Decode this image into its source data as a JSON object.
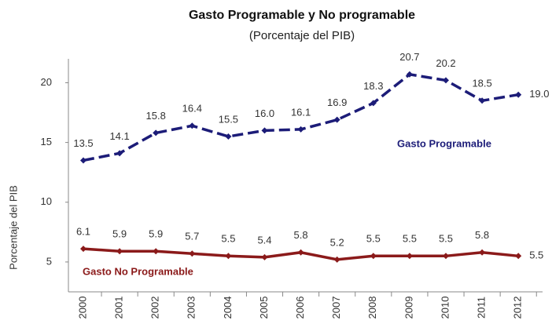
{
  "chart_data": {
    "type": "line",
    "title": "Gasto Programable y No programable",
    "subtitle": "(Porcentaje del PIB)",
    "y_label": "Porcentaje del PIB",
    "categories": [
      "2000",
      "2001",
      "2002",
      "2003",
      "2004",
      "2005",
      "2006",
      "2007",
      "2008",
      "2009",
      "2010",
      "2011",
      "2012"
    ],
    "series": [
      {
        "name": "Gasto Programable",
        "color": "#1c1c78",
        "dashed": true,
        "values": [
          13.5,
          14.1,
          15.8,
          16.4,
          15.5,
          16.0,
          16.1,
          16.9,
          18.3,
          20.7,
          20.2,
          18.5,
          19.0
        ],
        "value_labels": [
          "13.5",
          "14.1",
          "15.8",
          "16.4",
          "15.5",
          "16.0",
          "16.1",
          "16.9",
          "18.3",
          "20.7",
          "20.2",
          "18.5",
          "19.0"
        ]
      },
      {
        "name": "Gasto No Programable",
        "color": "#8b1a1a",
        "dashed": false,
        "values": [
          6.1,
          5.9,
          5.9,
          5.7,
          5.5,
          5.4,
          5.8,
          5.2,
          5.5,
          5.5,
          5.5,
          5.8,
          5.5
        ],
        "value_labels": [
          "6.1",
          "5.9",
          "5.9",
          "5.7",
          "5.5",
          "5.4",
          "5.8",
          "5.2",
          "5.5",
          "5.5",
          "5.5",
          "5.8",
          "5.5"
        ]
      }
    ],
    "ylim": [
      2.5,
      22
    ],
    "yticks": [
      5,
      10,
      15,
      20
    ],
    "grid": false
  }
}
